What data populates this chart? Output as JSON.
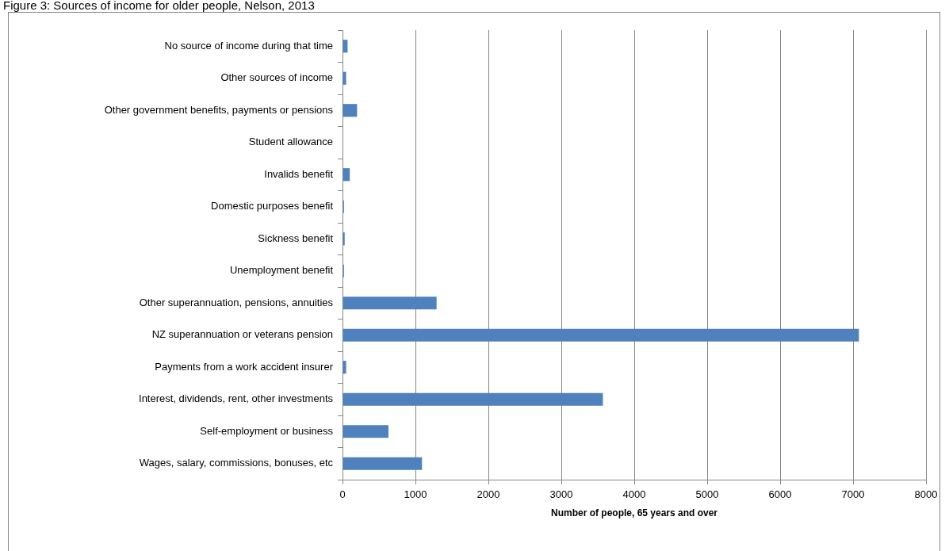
{
  "chart_data": {
    "type": "bar",
    "orientation": "horizontal",
    "title": "Figure 3: Sources of income for older people, Nelson, 2013",
    "xlabel": "Number of people, 65 years and over",
    "categories": [
      "No source of income during that time",
      "Other sources of income",
      "Other government benefits, payments or pensions",
      "Student allowance",
      "Invalids benefit",
      "Domestic purposes benefit",
      "Sickness benefit",
      "Unemployment benefit",
      "Other superannuation, pensions, annuities",
      "NZ superannuation or veterans pension",
      "Payments from a work accident insurer",
      "Interest, dividends, rent, other investments",
      "Self-employment or business",
      "Wages, salary, commissions, bonuses, etc"
    ],
    "values": [
      70,
      50,
      200,
      0,
      100,
      20,
      30,
      20,
      1290,
      7080,
      50,
      3570,
      630,
      1090
    ],
    "color": "#4f81bd",
    "xlim": [
      0,
      8000
    ],
    "xticks": [
      0,
      1000,
      2000,
      3000,
      4000,
      5000,
      6000,
      7000,
      8000
    ],
    "grid": "x"
  }
}
